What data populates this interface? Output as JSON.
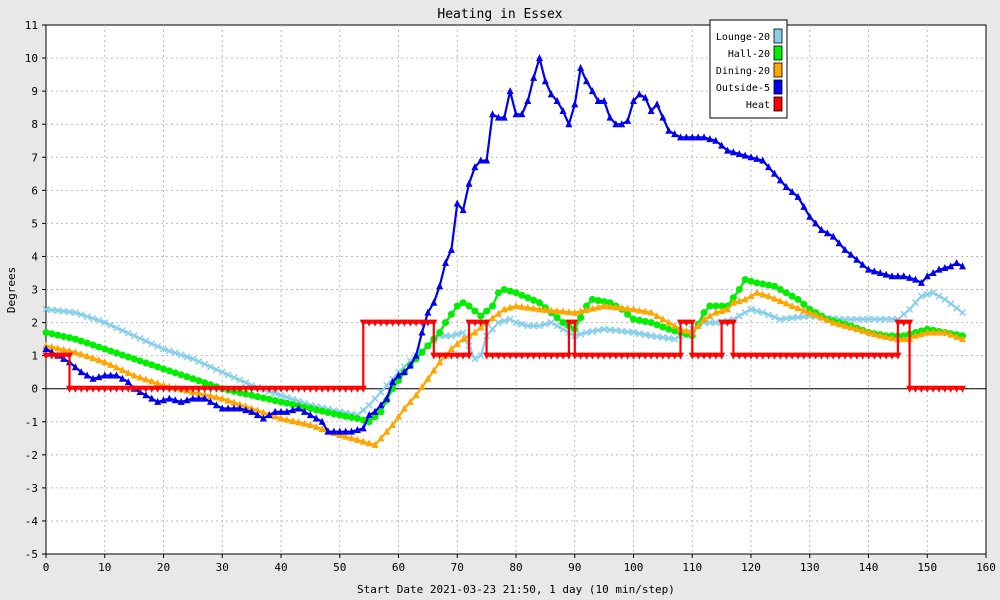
{
  "chart_data": {
    "type": "line",
    "title": "Heating in Essex",
    "xlabel": "Start Date 2021-03-23 21:50, 1 day (10 min/step)",
    "ylabel": "Degrees",
    "xlim": [
      0,
      160
    ],
    "ylim": [
      -5,
      11
    ],
    "xticks": [
      0,
      10,
      20,
      30,
      40,
      50,
      60,
      70,
      80,
      90,
      100,
      110,
      120,
      130,
      140,
      150,
      160
    ],
    "yticks": [
      -5,
      -4,
      -3,
      -2,
      -1,
      0,
      1,
      2,
      3,
      4,
      5,
      6,
      7,
      8,
      9,
      10,
      11
    ],
    "grid": true,
    "legend_position": "top-right",
    "series": [
      {
        "name": "Lounge-20",
        "color": "#87ceeb",
        "marker": "x",
        "points": [
          [
            0,
            2.4
          ],
          [
            5,
            2.3
          ],
          [
            10,
            2.0
          ],
          [
            15,
            1.6
          ],
          [
            20,
            1.2
          ],
          [
            25,
            0.9
          ],
          [
            30,
            0.5
          ],
          [
            35,
            0.1
          ],
          [
            40,
            -0.2
          ],
          [
            45,
            -0.5
          ],
          [
            50,
            -0.7
          ],
          [
            53,
            -0.8
          ],
          [
            55,
            -0.5
          ],
          [
            58,
            0.1
          ],
          [
            60,
            0.5
          ],
          [
            63,
            1.0
          ],
          [
            65,
            1.3
          ],
          [
            67,
            1.6
          ],
          [
            69,
            1.6
          ],
          [
            71,
            1.7
          ],
          [
            72,
            1.3
          ],
          [
            73,
            0.9
          ],
          [
            74,
            1.0
          ],
          [
            75,
            1.6
          ],
          [
            77,
            2.0
          ],
          [
            79,
            2.1
          ],
          [
            80,
            2.0
          ],
          [
            82,
            1.9
          ],
          [
            84,
            1.9
          ],
          [
            86,
            2.0
          ],
          [
            88,
            1.8
          ],
          [
            90,
            1.6
          ],
          [
            92,
            1.7
          ],
          [
            95,
            1.8
          ],
          [
            100,
            1.7
          ],
          [
            103,
            1.6
          ],
          [
            107,
            1.5
          ],
          [
            110,
            1.8
          ],
          [
            112,
            2.0
          ],
          [
            115,
            2.0
          ],
          [
            117,
            2.1
          ],
          [
            119,
            2.3
          ],
          [
            120,
            2.4
          ],
          [
            122,
            2.3
          ],
          [
            125,
            2.1
          ],
          [
            130,
            2.2
          ],
          [
            135,
            2.1
          ],
          [
            140,
            2.1
          ],
          [
            145,
            2.1
          ],
          [
            147,
            2.4
          ],
          [
            149,
            2.8
          ],
          [
            151,
            2.9
          ],
          [
            153,
            2.7
          ],
          [
            156,
            2.3
          ]
        ]
      },
      {
        "name": "Hall-20",
        "color": "#00ee00",
        "marker": "circle",
        "points": [
          [
            0,
            1.7
          ],
          [
            5,
            1.5
          ],
          [
            10,
            1.2
          ],
          [
            15,
            0.9
          ],
          [
            20,
            0.6
          ],
          [
            25,
            0.3
          ],
          [
            30,
            0.0
          ],
          [
            35,
            -0.2
          ],
          [
            40,
            -0.4
          ],
          [
            45,
            -0.6
          ],
          [
            50,
            -0.8
          ],
          [
            53,
            -0.9
          ],
          [
            55,
            -1.0
          ],
          [
            57,
            -0.7
          ],
          [
            59,
            0.0
          ],
          [
            61,
            0.5
          ],
          [
            63,
            0.9
          ],
          [
            65,
            1.3
          ],
          [
            67,
            1.7
          ],
          [
            68,
            2.0
          ],
          [
            70,
            2.5
          ],
          [
            71,
            2.6
          ],
          [
            72,
            2.5
          ],
          [
            74,
            2.2
          ],
          [
            76,
            2.5
          ],
          [
            77,
            2.9
          ],
          [
            78,
            3.0
          ],
          [
            80,
            2.9
          ],
          [
            84,
            2.6
          ],
          [
            86,
            2.3
          ],
          [
            88,
            2.0
          ],
          [
            90,
            1.8
          ],
          [
            92,
            2.5
          ],
          [
            93,
            2.7
          ],
          [
            96,
            2.6
          ],
          [
            98,
            2.4
          ],
          [
            100,
            2.1
          ],
          [
            103,
            2.0
          ],
          [
            106,
            1.8
          ],
          [
            108,
            1.7
          ],
          [
            110,
            1.6
          ],
          [
            112,
            2.3
          ],
          [
            113,
            2.5
          ],
          [
            116,
            2.5
          ],
          [
            118,
            3.0
          ],
          [
            119,
            3.3
          ],
          [
            121,
            3.2
          ],
          [
            124,
            3.1
          ],
          [
            126,
            2.9
          ],
          [
            128,
            2.7
          ],
          [
            130,
            2.4
          ],
          [
            133,
            2.1
          ],
          [
            137,
            1.9
          ],
          [
            140,
            1.7
          ],
          [
            143,
            1.6
          ],
          [
            146,
            1.6
          ],
          [
            148,
            1.7
          ],
          [
            150,
            1.8
          ],
          [
            153,
            1.7
          ],
          [
            156,
            1.6
          ]
        ]
      },
      {
        "name": "Dining-20",
        "color": "#ffa500",
        "marker": "triangle",
        "points": [
          [
            0,
            1.3
          ],
          [
            5,
            1.1
          ],
          [
            10,
            0.8
          ],
          [
            15,
            0.4
          ],
          [
            20,
            0.1
          ],
          [
            25,
            -0.1
          ],
          [
            30,
            -0.3
          ],
          [
            35,
            -0.6
          ],
          [
            40,
            -0.9
          ],
          [
            45,
            -1.1
          ],
          [
            50,
            -1.4
          ],
          [
            54,
            -1.6
          ],
          [
            56,
            -1.7
          ],
          [
            57,
            -1.5
          ],
          [
            59,
            -1.1
          ],
          [
            61,
            -0.6
          ],
          [
            63,
            -0.2
          ],
          [
            65,
            0.3
          ],
          [
            67,
            0.8
          ],
          [
            69,
            1.2
          ],
          [
            71,
            1.5
          ],
          [
            73,
            1.7
          ],
          [
            75,
            2.0
          ],
          [
            78,
            2.4
          ],
          [
            80,
            2.5
          ],
          [
            84,
            2.4
          ],
          [
            90,
            2.3
          ],
          [
            95,
            2.5
          ],
          [
            100,
            2.4
          ],
          [
            103,
            2.3
          ],
          [
            106,
            2.0
          ],
          [
            108,
            1.8
          ],
          [
            110,
            1.7
          ],
          [
            112,
            2.1
          ],
          [
            114,
            2.3
          ],
          [
            116,
            2.4
          ],
          [
            117,
            2.6
          ],
          [
            119,
            2.7
          ],
          [
            121,
            2.9
          ],
          [
            123,
            2.8
          ],
          [
            127,
            2.5
          ],
          [
            130,
            2.3
          ],
          [
            134,
            2.0
          ],
          [
            138,
            1.8
          ],
          [
            142,
            1.6
          ],
          [
            145,
            1.5
          ],
          [
            147,
            1.5
          ],
          [
            148,
            1.6
          ],
          [
            150,
            1.7
          ],
          [
            153,
            1.7
          ],
          [
            156,
            1.5
          ]
        ]
      },
      {
        "name": "Outside-5",
        "color": "#0000ee",
        "marker": "triangle",
        "points": [
          [
            0,
            1.2
          ],
          [
            2,
            1.0
          ],
          [
            4,
            0.8
          ],
          [
            6,
            0.5
          ],
          [
            8,
            0.3
          ],
          [
            10,
            0.4
          ],
          [
            12,
            0.4
          ],
          [
            14,
            0.2
          ],
          [
            15,
            0.0
          ],
          [
            17,
            -0.2
          ],
          [
            19,
            -0.4
          ],
          [
            21,
            -0.3
          ],
          [
            23,
            -0.4
          ],
          [
            25,
            -0.3
          ],
          [
            27,
            -0.3
          ],
          [
            28,
            -0.4
          ],
          [
            30,
            -0.6
          ],
          [
            33,
            -0.6
          ],
          [
            35,
            -0.7
          ],
          [
            37,
            -0.9
          ],
          [
            39,
            -0.7
          ],
          [
            41,
            -0.7
          ],
          [
            43,
            -0.6
          ],
          [
            45,
            -0.8
          ],
          [
            47,
            -1.0
          ],
          [
            48,
            -1.3
          ],
          [
            50,
            -1.3
          ],
          [
            52,
            -1.3
          ],
          [
            54,
            -1.2
          ],
          [
            55,
            -0.8
          ],
          [
            56,
            -0.7
          ],
          [
            57,
            -0.5
          ],
          [
            58,
            -0.3
          ],
          [
            59,
            0.2
          ],
          [
            60,
            0.4
          ],
          [
            61,
            0.5
          ],
          [
            62,
            0.7
          ],
          [
            63,
            1.0
          ],
          [
            64,
            1.7
          ],
          [
            65,
            2.3
          ],
          [
            66,
            2.6
          ],
          [
            67,
            3.1
          ],
          [
            68,
            3.8
          ],
          [
            69,
            4.2
          ],
          [
            70,
            5.6
          ],
          [
            71,
            5.4
          ],
          [
            72,
            6.2
          ],
          [
            73,
            6.7
          ],
          [
            74,
            6.9
          ],
          [
            75,
            6.9
          ],
          [
            76,
            8.3
          ],
          [
            77,
            8.2
          ],
          [
            78,
            8.2
          ],
          [
            79,
            9.0
          ],
          [
            80,
            8.3
          ],
          [
            81,
            8.3
          ],
          [
            82,
            8.7
          ],
          [
            83,
            9.4
          ],
          [
            84,
            10.0
          ],
          [
            85,
            9.3
          ],
          [
            86,
            8.9
          ],
          [
            87,
            8.7
          ],
          [
            88,
            8.4
          ],
          [
            89,
            8.0
          ],
          [
            90,
            8.6
          ],
          [
            91,
            9.7
          ],
          [
            92,
            9.3
          ],
          [
            93,
            9.0
          ],
          [
            94,
            8.7
          ],
          [
            95,
            8.7
          ],
          [
            96,
            8.2
          ],
          [
            97,
            8.0
          ],
          [
            98,
            8.0
          ],
          [
            99,
            8.1
          ],
          [
            100,
            8.7
          ],
          [
            101,
            8.9
          ],
          [
            102,
            8.8
          ],
          [
            103,
            8.4
          ],
          [
            104,
            8.6
          ],
          [
            105,
            8.2
          ],
          [
            106,
            7.8
          ],
          [
            107,
            7.7
          ],
          [
            108,
            7.6
          ],
          [
            110,
            7.6
          ],
          [
            112,
            7.6
          ],
          [
            114,
            7.5
          ],
          [
            116,
            7.2
          ],
          [
            118,
            7.1
          ],
          [
            120,
            7.0
          ],
          [
            122,
            6.9
          ],
          [
            124,
            6.5
          ],
          [
            126,
            6.1
          ],
          [
            128,
            5.8
          ],
          [
            130,
            5.2
          ],
          [
            132,
            4.8
          ],
          [
            134,
            4.6
          ],
          [
            136,
            4.2
          ],
          [
            138,
            3.9
          ],
          [
            140,
            3.6
          ],
          [
            142,
            3.5
          ],
          [
            144,
            3.4
          ],
          [
            146,
            3.4
          ],
          [
            148,
            3.3
          ],
          [
            149,
            3.2
          ],
          [
            150,
            3.4
          ],
          [
            152,
            3.6
          ],
          [
            154,
            3.7
          ],
          [
            155,
            3.8
          ],
          [
            156,
            3.7
          ]
        ]
      },
      {
        "name": "Heat",
        "color": "#ff0000",
        "marker": "down-triangle",
        "points": [
          [
            0,
            1.0
          ],
          [
            4,
            1.0
          ],
          [
            4,
            0.0
          ],
          [
            54,
            0.0
          ],
          [
            54,
            2.0
          ],
          [
            66,
            2.0
          ],
          [
            66,
            1.0
          ],
          [
            72,
            1.0
          ],
          [
            72,
            2.0
          ],
          [
            75,
            2.0
          ],
          [
            75,
            1.0
          ],
          [
            89,
            1.0
          ],
          [
            89,
            2.0
          ],
          [
            90,
            2.0
          ],
          [
            90,
            1.0
          ],
          [
            108,
            1.0
          ],
          [
            108,
            2.0
          ],
          [
            110,
            2.0
          ],
          [
            110,
            1.0
          ],
          [
            115,
            1.0
          ],
          [
            115,
            2.0
          ],
          [
            117,
            2.0
          ],
          [
            117,
            1.0
          ],
          [
            145,
            1.0
          ],
          [
            145,
            2.0
          ],
          [
            147,
            2.0
          ],
          [
            147,
            0.0
          ],
          [
            156,
            0.0
          ]
        ]
      }
    ]
  }
}
